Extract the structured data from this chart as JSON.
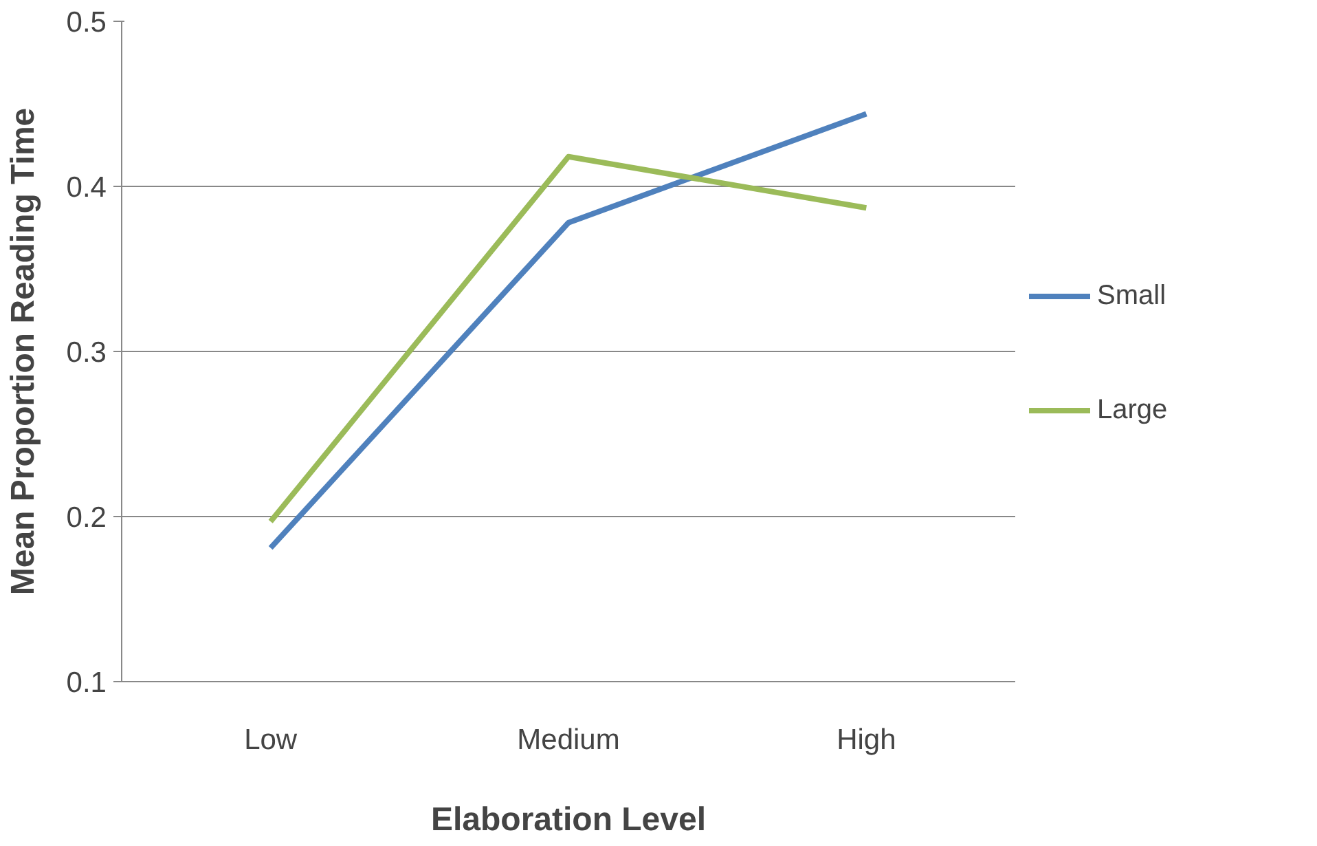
{
  "chart_data": {
    "type": "line",
    "xlabel": "Elaboration Level",
    "ylabel": "Mean Proportion Reading Time",
    "categories": [
      "Low",
      "Medium",
      "High"
    ],
    "series": [
      {
        "name": "Small",
        "color": "#4f81bd",
        "values": [
          0.181,
          0.378,
          0.444
        ]
      },
      {
        "name": "Large",
        "color": "#9bbb59",
        "values": [
          0.197,
          0.418,
          0.387
        ]
      }
    ],
    "ylim": [
      0.1,
      0.5
    ],
    "yticks": [
      0.1,
      0.2,
      0.3,
      0.4,
      0.5
    ],
    "grid": "y",
    "legend": "right",
    "marker": "none",
    "line_style": "solid"
  }
}
